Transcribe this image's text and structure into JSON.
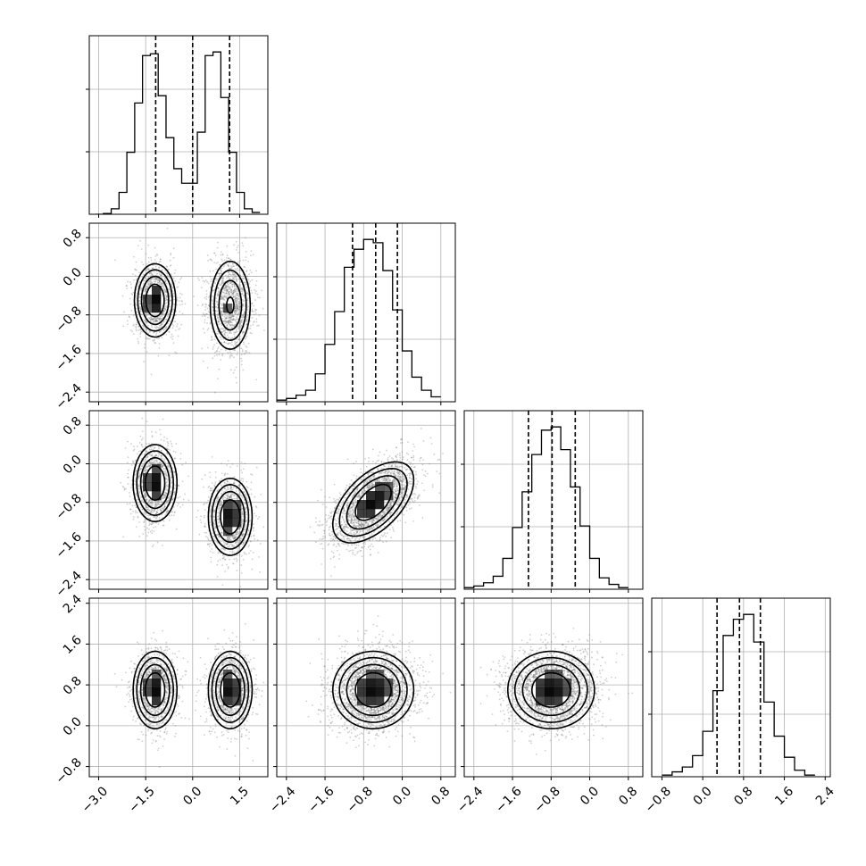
{
  "chart_data": {
    "type": "corner",
    "n_params": 4,
    "colors": {
      "ink": "#000000",
      "grid": "#b0b0b0",
      "density": "#000000",
      "points": "#777777"
    },
    "grid": true,
    "ranges": [
      [
        -3.3,
        2.4
      ],
      [
        -2.6,
        1.1
      ],
      [
        -2.6,
        1.1
      ],
      [
        -1.0,
        2.5
      ]
    ],
    "ticks": [
      {
        "values": [
          -3.0,
          -1.5,
          0.0,
          1.5
        ],
        "labels": [
          "−3.0",
          "−1.5",
          "0.0",
          "1.5"
        ]
      },
      {
        "values": [
          -2.4,
          -1.6,
          -0.8,
          0.0,
          0.8
        ],
        "labels": [
          "−2.4",
          "−1.6",
          "−0.8",
          "0.0",
          "0.8"
        ]
      },
      {
        "values": [
          -2.4,
          -1.6,
          -0.8,
          0.0,
          0.8
        ],
        "labels": [
          "−2.4",
          "−1.6",
          "−0.8",
          "0.0",
          "0.8"
        ]
      },
      {
        "values": [
          -0.8,
          0.0,
          0.8,
          1.6,
          2.4
        ],
        "labels": [
          "−0.8",
          "0.0",
          "0.8",
          "1.6",
          "2.4"
        ]
      }
    ],
    "histograms": [
      {
        "param": 0,
        "bin_edges": [
          -3.1,
          -2.85,
          -2.6,
          -2.35,
          -2.1,
          -1.85,
          -1.6,
          -1.35,
          -1.1,
          -0.85,
          -0.6,
          -0.35,
          -0.1,
          0.15,
          0.4,
          0.65,
          0.9,
          1.15,
          1.4,
          1.65,
          1.9,
          2.15
        ],
        "counts": [
          0.0,
          0.004,
          0.03,
          0.12,
          0.34,
          0.61,
          0.87,
          0.88,
          0.65,
          0.42,
          0.25,
          0.17,
          0.17,
          0.45,
          0.87,
          0.89,
          0.64,
          0.34,
          0.12,
          0.03,
          0.01
        ],
        "quantiles": [
          -1.18,
          0.0,
          1.18
        ]
      },
      {
        "param": 1,
        "bin_edges": [
          -2.6,
          -2.4,
          -2.2,
          -2.0,
          -1.8,
          -1.6,
          -1.4,
          -1.2,
          -1.0,
          -0.8,
          -0.6,
          -0.4,
          -0.2,
          0.0,
          0.2,
          0.4,
          0.6,
          0.8
        ],
        "counts": [
          0.01,
          0.02,
          0.04,
          0.07,
          0.17,
          0.35,
          0.55,
          0.82,
          0.93,
          0.99,
          0.97,
          0.8,
          0.56,
          0.31,
          0.15,
          0.07,
          0.03
        ],
        "quantiles": [
          -1.03,
          -0.55,
          -0.1
        ]
      },
      {
        "param": 2,
        "bin_edges": [
          -2.6,
          -2.4,
          -2.2,
          -2.0,
          -1.8,
          -1.6,
          -1.4,
          -1.2,
          -1.0,
          -0.8,
          -0.6,
          -0.4,
          -0.2,
          0.0,
          0.2,
          0.4,
          0.6,
          0.8
        ],
        "counts": [
          0.01,
          0.02,
          0.04,
          0.08,
          0.19,
          0.38,
          0.6,
          0.83,
          0.98,
          1.0,
          0.86,
          0.63,
          0.39,
          0.19,
          0.07,
          0.03,
          0.01
        ],
        "quantiles": [
          -1.27,
          -0.78,
          -0.3
        ]
      },
      {
        "param": 3,
        "bin_edges": [
          -0.8,
          -0.6,
          -0.4,
          -0.2,
          0.0,
          0.2,
          0.4,
          0.6,
          0.8,
          1.0,
          1.2,
          1.4,
          1.6,
          1.8,
          2.0,
          2.2
        ],
        "counts": [
          0.01,
          0.03,
          0.06,
          0.13,
          0.28,
          0.53,
          0.87,
          0.97,
          1.0,
          0.83,
          0.46,
          0.25,
          0.12,
          0.04,
          0.01
        ],
        "quantiles": [
          0.28,
          0.72,
          1.13
        ]
      }
    ],
    "pairs": [
      {
        "x_param": 0,
        "y_param": 1,
        "components": [
          {
            "mean": [
              -1.2,
              -0.5
            ],
            "sd": [
              0.33,
              0.38
            ],
            "rho": 0.0,
            "weight": 0.5
          },
          {
            "mean": [
              1.2,
              -0.6
            ],
            "sd": [
              0.35,
              0.5
            ],
            "rho": 0.0,
            "weight": 0.5
          }
        ]
      },
      {
        "x_param": 0,
        "y_param": 2,
        "components": [
          {
            "mean": [
              -1.2,
              -0.4
            ],
            "sd": [
              0.35,
              0.4
            ],
            "rho": 0.0,
            "weight": 0.5
          },
          {
            "mean": [
              1.2,
              -1.1
            ],
            "sd": [
              0.35,
              0.4
            ],
            "rho": 0.0,
            "weight": 0.5
          }
        ]
      },
      {
        "x_param": 1,
        "y_param": 2,
        "components": [
          {
            "mean": [
              -0.6,
              -0.8
            ],
            "sd": [
              0.42,
              0.42
            ],
            "rho": 0.55,
            "weight": 1.0
          }
        ]
      },
      {
        "x_param": 0,
        "y_param": 3,
        "components": [
          {
            "mean": [
              -1.2,
              0.7
            ],
            "sd": [
              0.35,
              0.38
            ],
            "rho": 0.0,
            "weight": 0.5
          },
          {
            "mean": [
              1.2,
              0.7
            ],
            "sd": [
              0.35,
              0.38
            ],
            "rho": 0.0,
            "weight": 0.5
          }
        ]
      },
      {
        "x_param": 1,
        "y_param": 3,
        "components": [
          {
            "mean": [
              -0.6,
              0.7
            ],
            "sd": [
              0.42,
              0.38
            ],
            "rho": 0.0,
            "weight": 1.0
          }
        ]
      },
      {
        "x_param": 2,
        "y_param": 3,
        "components": [
          {
            "mean": [
              -0.8,
              0.7
            ],
            "sd": [
              0.45,
              0.38
            ],
            "rho": 0.0,
            "weight": 1.0
          }
        ]
      }
    ],
    "contour_levels": [
      0.39,
      0.86,
      1.39,
      1.99
    ]
  }
}
